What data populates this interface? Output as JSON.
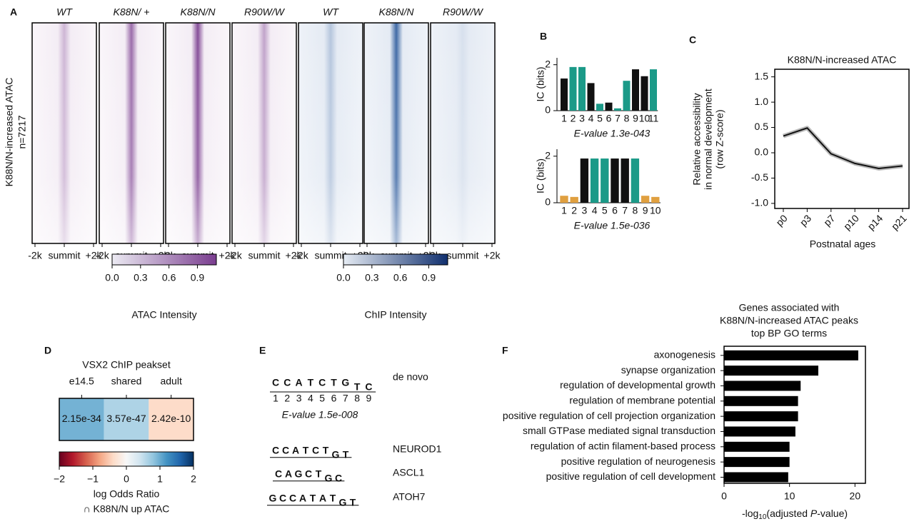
{
  "panel_labels": [
    "A",
    "B",
    "C",
    "D",
    "E",
    "F"
  ],
  "panel_a": {
    "columns": [
      "WT",
      "K88N/ +",
      "K88N/N",
      "R90W/W",
      "WT",
      "K88N/N",
      "R90W/W"
    ],
    "ylabel": "K88N/N-increased ATAC",
    "n_label": "n=7217",
    "xticklabels": [
      "-2k",
      "summit",
      "+2k"
    ],
    "colorbars": [
      {
        "label": "ATAC Intensity",
        "clim": [
          0,
          1.1
        ],
        "ticks": [
          {
            "value": 0,
            "label": "0.0"
          },
          {
            "value": 0.3,
            "label": "0.3"
          },
          {
            "value": 0.6,
            "label": "0.6"
          },
          {
            "value": 0.9,
            "label": "0.9"
          }
        ]
      },
      {
        "label": "ChIP Intensity",
        "clim": [
          0,
          1.1
        ],
        "ticks": [
          {
            "value": 0,
            "label": "0.0"
          },
          {
            "value": 0.3,
            "label": "0.3"
          },
          {
            "value": 0.6,
            "label": "0.6"
          },
          {
            "value": 0.9,
            "label": "0.9"
          }
        ]
      }
    ]
  },
  "panel_b": {
    "ylabel": "IC (bits)",
    "motifs": [
      {
        "ylim": [
          0,
          2.3
        ],
        "yticks": [
          0,
          2
        ],
        "positions": [
          1,
          2,
          3,
          4,
          5,
          6,
          7,
          8,
          9,
          10,
          11
        ],
        "evalue": "E-value 1.3e-043"
      },
      {
        "ylim": [
          0,
          2.3
        ],
        "yticks": [
          0,
          2
        ],
        "positions": [
          1,
          2,
          3,
          4,
          5,
          6,
          7,
          8,
          9,
          10
        ],
        "evalue": "E-value 1.5e-036"
      }
    ]
  },
  "panel_e": {
    "motifs": [
      {
        "name": "de novo",
        "letters": [
          "C",
          "C",
          "A",
          "T",
          "C",
          "T",
          "G",
          "T",
          "C"
        ],
        "positions": [
          1,
          2,
          3,
          4,
          5,
          6,
          7,
          8,
          9
        ],
        "evalue": "E-value 1.5e-008"
      },
      {
        "name": "NEUROD1",
        "letters": [
          "C",
          "C",
          "A",
          "T",
          "C",
          "T",
          "G",
          "T"
        ]
      },
      {
        "name": "ASCL1",
        "letters": [
          "C",
          "A",
          "G",
          "C",
          "T",
          "G",
          "C"
        ]
      },
      {
        "name": "ATOH7",
        "letters": [
          "G",
          "C",
          "C",
          "A",
          "T",
          "A",
          "T",
          "G",
          "T"
        ]
      }
    ]
  },
  "chart_data": [
    {
      "type": "line",
      "title": "K88N/N-increased ATAC",
      "ylabel": [
        "Relative accessibility",
        "in normal development",
        "(row Z-score)"
      ],
      "xlabel": "Postnatal ages",
      "categories": [
        "p0",
        "p3",
        "p7",
        "p10",
        "p14",
        "p21"
      ],
      "values": [
        0.33,
        0.49,
        -0.02,
        -0.21,
        -0.31,
        -0.26
      ],
      "color": "#111111",
      "ylim": [
        -1.1,
        1.65
      ],
      "yticks": [
        {
          "value": -1,
          "label": "-1.0"
        },
        {
          "value": -0.5,
          "label": "-0.5"
        },
        {
          "value": 0,
          "label": "0.0"
        },
        {
          "value": 0.5,
          "label": "0.5"
        },
        {
          "value": 1,
          "label": "1.0"
        },
        {
          "value": 1.5,
          "label": "1.5"
        }
      ]
    },
    {
      "type": "heatmap",
      "title": "VSX2 ChIP peakset",
      "categories": [
        "e14.5",
        "shared",
        "adult"
      ],
      "values": [
        0.95,
        0.62,
        -0.38
      ],
      "cell_labels": [
        "2.15e-34",
        "3.57e-47",
        "2.42e-10"
      ],
      "colormap": "RdBu",
      "clim": [
        -2,
        2
      ],
      "cticks": [
        {
          "value": -2,
          "label": "−2"
        },
        {
          "value": -1,
          "label": "−1"
        },
        0,
        1,
        2
      ],
      "colorbar_label": [
        "log Odds Ratio",
        "∩ K88N/N up ATAC"
      ]
    },
    {
      "type": "barh",
      "title": [
        "Genes associated with",
        "K88N/N-increased ATAC peaks",
        "top BP GO terms"
      ],
      "categories": [
        "axonogenesis",
        "synapse organization",
        "regulation of developmental growth",
        "regulation of membrane potential",
        "positive regulation of cell projection organization",
        "small GTPase mediated signal transduction",
        "regulation of actin filament-based process",
        "positive regulation of neurogenesis",
        "positive regulation of cell development"
      ],
      "values": [
        20.5,
        14.4,
        11.7,
        11.3,
        11.3,
        10.9,
        10.0,
        10.0,
        9.8
      ],
      "color": "#000000",
      "xlim": [
        0,
        21.6
      ],
      "xticks": [
        0,
        10,
        20
      ],
      "xlabel_parts": [
        "-log",
        "10",
        "(adjusted ",
        "P",
        "-value)"
      ]
    }
  ]
}
